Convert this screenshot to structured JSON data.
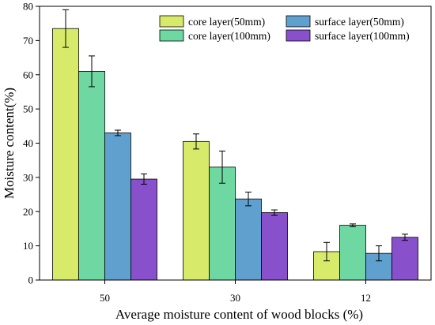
{
  "chart_data": {
    "type": "bar",
    "categories": [
      "50",
      "30",
      "12"
    ],
    "xlabel": "Average moisture content of wood blocks (%)",
    "ylabel": "Moisture content(%)",
    "ylim": [
      0,
      80
    ],
    "yticks": [
      0,
      10,
      20,
      30,
      40,
      50,
      60,
      70,
      80
    ],
    "grid": false,
    "legend_position": "top-right",
    "series": [
      {
        "name": "core layer(50mm)",
        "color": "#d7ea6a",
        "values": [
          73.5,
          40.5,
          8.3
        ],
        "errors": [
          5.5,
          2.2,
          2.7
        ]
      },
      {
        "name": "core layer(100mm)",
        "color": "#6ed7a2",
        "values": [
          61.0,
          33.0,
          16.0
        ],
        "errors": [
          4.5,
          4.7,
          0.4
        ]
      },
      {
        "name": "surface layer(50mm)",
        "color": "#5fa0cf",
        "values": [
          43.0,
          23.7,
          7.8
        ],
        "errors": [
          0.8,
          2.0,
          2.2
        ]
      },
      {
        "name": "surface layer(100mm)",
        "color": "#8950cc",
        "values": [
          29.5,
          19.7,
          12.5
        ],
        "errors": [
          1.5,
          0.8,
          0.9
        ]
      }
    ]
  }
}
